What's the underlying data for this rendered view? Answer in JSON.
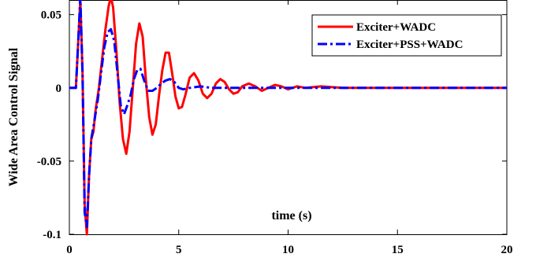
{
  "chart_data": {
    "type": "line",
    "title": "",
    "xlabel": "time (s)",
    "ylabel": "Wide Area Control Signal",
    "xlim": [
      0,
      20
    ],
    "ylim": [
      -0.1,
      0.06
    ],
    "xticks": [
      0,
      5,
      10,
      15,
      20
    ],
    "xtick_labels": [
      "0",
      "5",
      "10",
      "15",
      "20"
    ],
    "yticks": [
      -0.1,
      -0.05,
      0,
      0.05
    ],
    "ytick_labels": [
      "-0.1",
      "-0.05",
      "0",
      "0.05"
    ],
    "grid": false,
    "legend_position": "top-right",
    "series": [
      {
        "name": "Exciter+WADC",
        "color": "#ff0000",
        "dash": "solid",
        "points": [
          [
            0,
            0
          ],
          [
            0.3,
            0
          ],
          [
            0.4,
            0.03
          ],
          [
            0.5,
            0.06
          ],
          [
            0.6,
            0.01
          ],
          [
            0.7,
            -0.08
          ],
          [
            0.8,
            -0.1
          ],
          [
            0.9,
            -0.06
          ],
          [
            1.0,
            -0.035
          ],
          [
            1.1,
            -0.03
          ],
          [
            1.2,
            -0.015
          ],
          [
            1.35,
            0
          ],
          [
            1.5,
            0.02
          ],
          [
            1.65,
            0.04
          ],
          [
            1.8,
            0.056
          ],
          [
            1.9,
            0.062
          ],
          [
            2.0,
            0.055
          ],
          [
            2.15,
            0.025
          ],
          [
            2.3,
            -0.01
          ],
          [
            2.45,
            -0.035
          ],
          [
            2.6,
            -0.045
          ],
          [
            2.75,
            -0.03
          ],
          [
            2.9,
            0.0
          ],
          [
            3.05,
            0.03
          ],
          [
            3.2,
            0.044
          ],
          [
            3.35,
            0.035
          ],
          [
            3.5,
            0.005
          ],
          [
            3.65,
            -0.02
          ],
          [
            3.8,
            -0.032
          ],
          [
            3.95,
            -0.025
          ],
          [
            4.1,
            -0.005
          ],
          [
            4.25,
            0.012
          ],
          [
            4.4,
            0.024
          ],
          [
            4.55,
            0.024
          ],
          [
            4.7,
            0.01
          ],
          [
            4.85,
            -0.006
          ],
          [
            5.0,
            -0.014
          ],
          [
            5.15,
            -0.013
          ],
          [
            5.3,
            -0.005
          ],
          [
            5.5,
            0.007
          ],
          [
            5.7,
            0.01
          ],
          [
            5.9,
            0.005
          ],
          [
            6.1,
            -0.004
          ],
          [
            6.3,
            -0.007
          ],
          [
            6.5,
            -0.004
          ],
          [
            6.7,
            0.003
          ],
          [
            6.9,
            0.006
          ],
          [
            7.1,
            0.004
          ],
          [
            7.3,
            -0.001
          ],
          [
            7.5,
            -0.004
          ],
          [
            7.7,
            -0.003
          ],
          [
            7.9,
            0.001
          ],
          [
            8.2,
            0.003
          ],
          [
            8.5,
            0.001
          ],
          [
            8.8,
            -0.002
          ],
          [
            9.1,
            0
          ],
          [
            9.4,
            0.002
          ],
          [
            9.7,
            0.001
          ],
          [
            10.0,
            -0.001
          ],
          [
            10.4,
            0.001
          ],
          [
            10.8,
            0
          ],
          [
            11.5,
            0.001
          ],
          [
            12.5,
            0
          ],
          [
            14,
            0
          ],
          [
            17,
            0
          ],
          [
            20,
            0
          ]
        ]
      },
      {
        "name": "Exciter+PSS+WADC",
        "color": "#0000ff",
        "dash": "dashdot",
        "points": [
          [
            0,
            0
          ],
          [
            0.3,
            0
          ],
          [
            0.4,
            0.03
          ],
          [
            0.5,
            0.062
          ],
          [
            0.6,
            0.01
          ],
          [
            0.7,
            -0.085
          ],
          [
            0.8,
            -0.095
          ],
          [
            0.9,
            -0.06
          ],
          [
            1.0,
            -0.035
          ],
          [
            1.15,
            -0.022
          ],
          [
            1.3,
            -0.008
          ],
          [
            1.45,
            0.01
          ],
          [
            1.6,
            0.028
          ],
          [
            1.75,
            0.038
          ],
          [
            1.9,
            0.04
          ],
          [
            2.05,
            0.032
          ],
          [
            2.2,
            0.01
          ],
          [
            2.35,
            -0.012
          ],
          [
            2.5,
            -0.018
          ],
          [
            2.65,
            -0.012
          ],
          [
            2.8,
            -0.005
          ],
          [
            2.95,
            0.006
          ],
          [
            3.1,
            0.012
          ],
          [
            3.25,
            0.013
          ],
          [
            3.4,
            0.006
          ],
          [
            3.6,
            -0.002
          ],
          [
            3.8,
            -0.002
          ],
          [
            4.0,
            0.0
          ],
          [
            4.2,
            0.003
          ],
          [
            4.4,
            0.005
          ],
          [
            4.6,
            0.006
          ],
          [
            4.8,
            0.004
          ],
          [
            5.0,
            0.0
          ],
          [
            5.2,
            -0.001
          ],
          [
            5.5,
            0
          ],
          [
            6.0,
            0.001
          ],
          [
            6.5,
            0
          ],
          [
            8,
            0
          ],
          [
            10,
            0
          ],
          [
            20,
            0
          ]
        ]
      }
    ]
  }
}
